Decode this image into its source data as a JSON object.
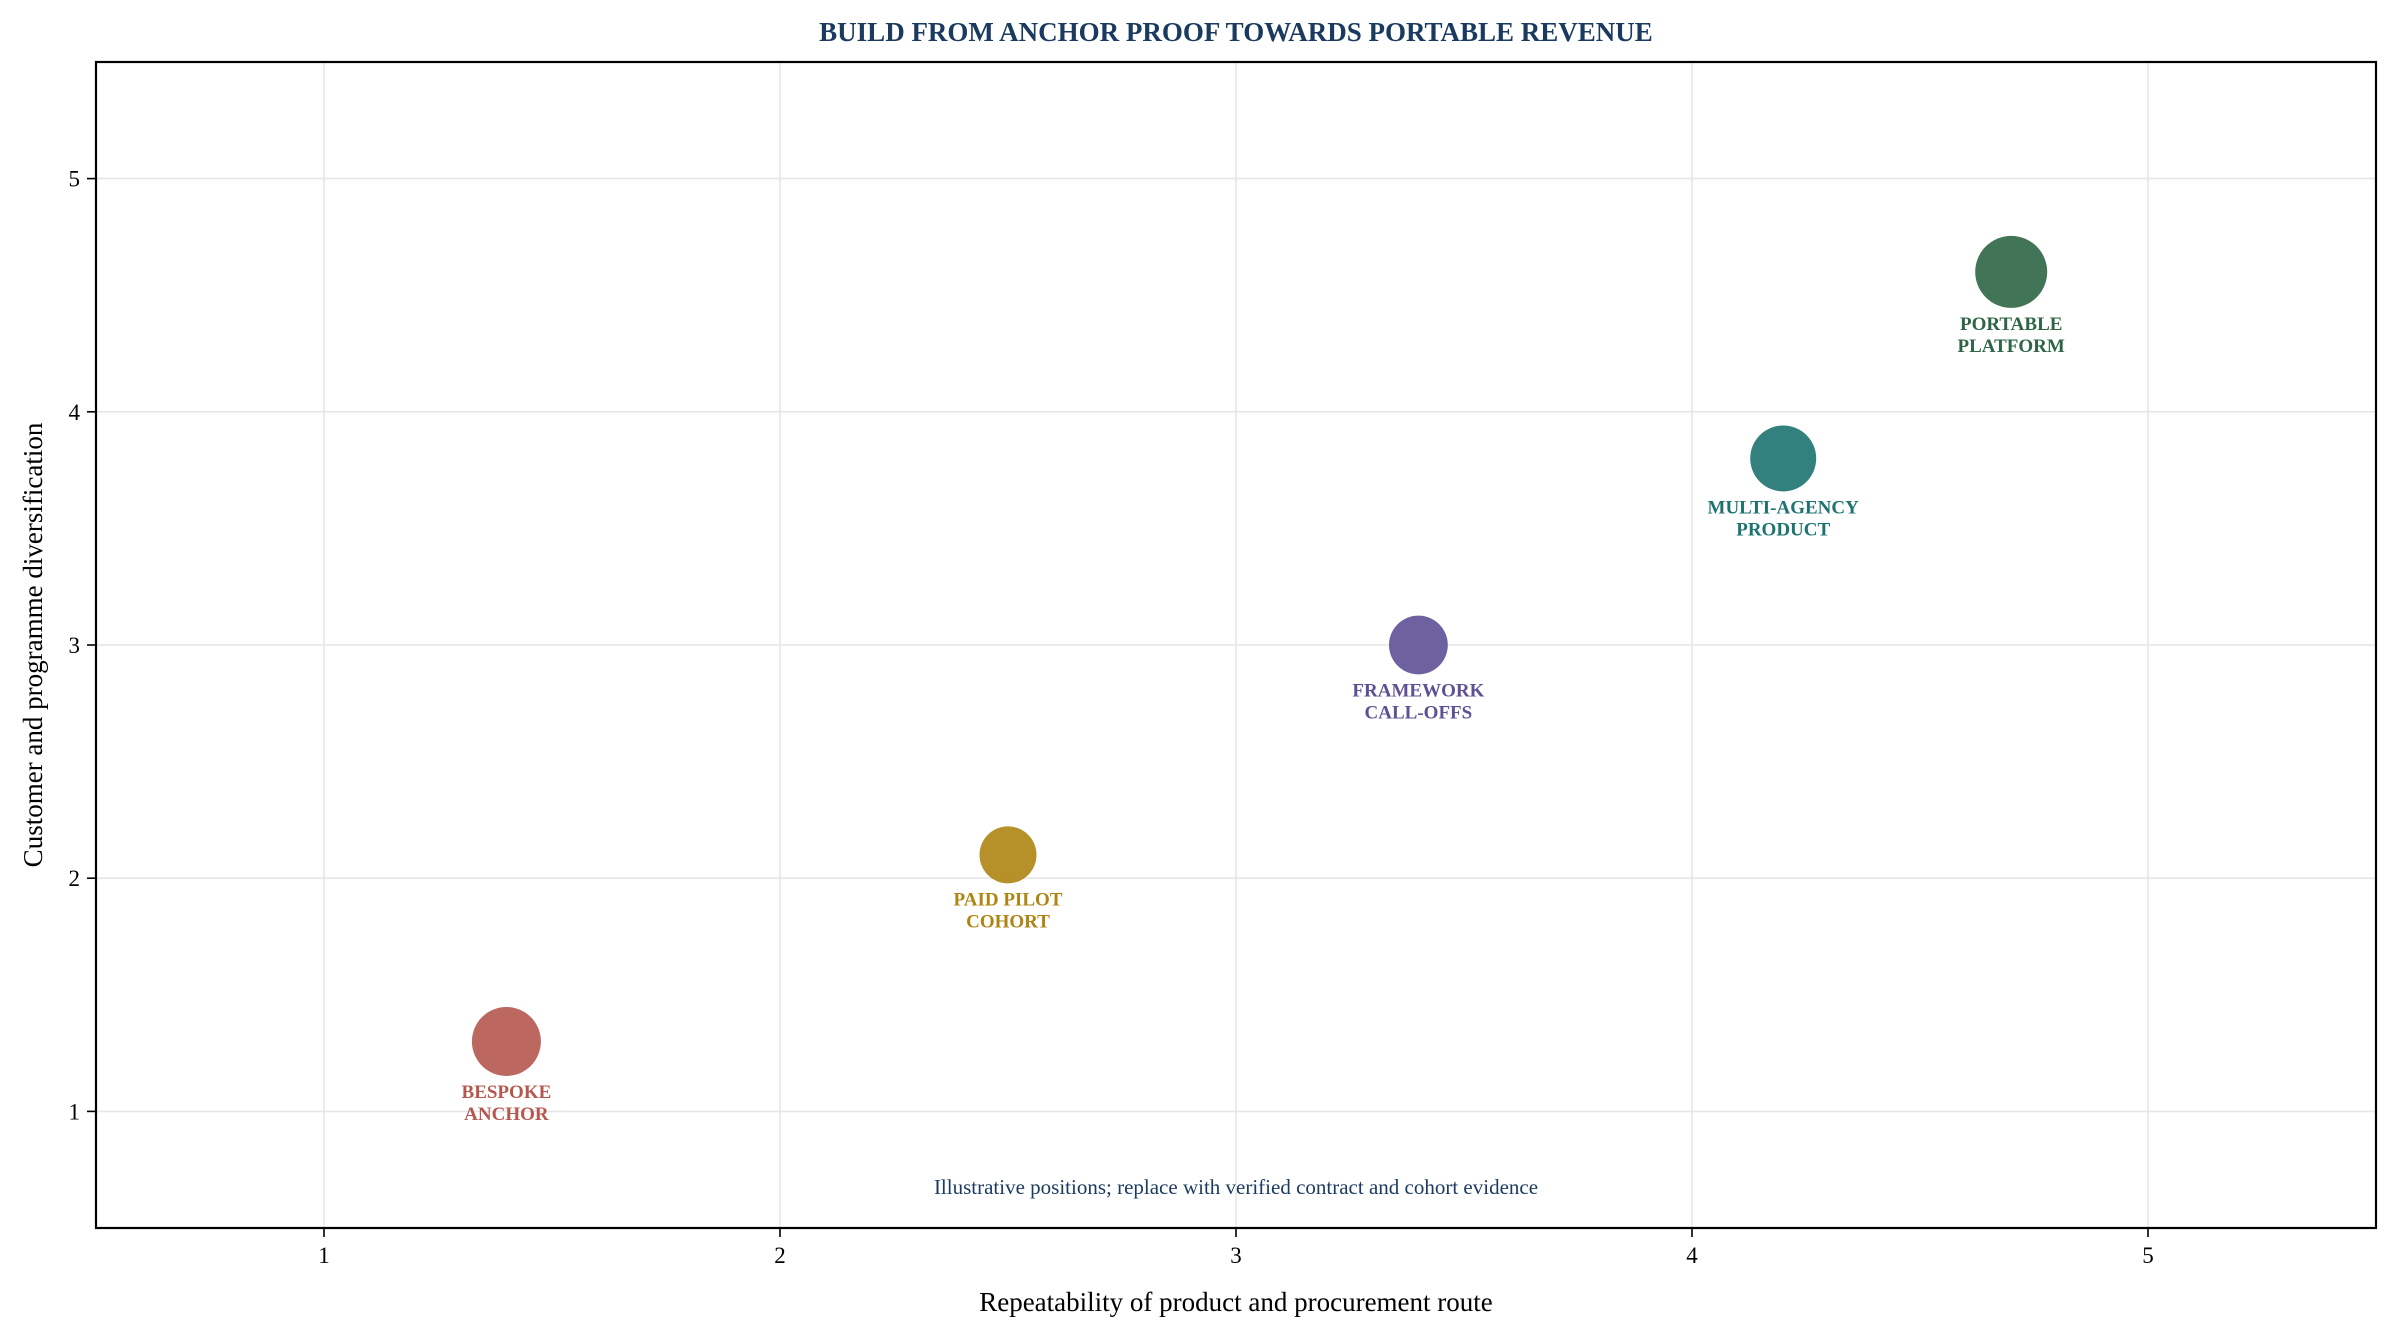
{
  "chart_data": {
    "type": "scatter",
    "title": "BUILD FROM ANCHOR PROOF TOWARDS PORTABLE REVENUE",
    "xlabel": "Repeatability of product and procurement route",
    "ylabel": "Customer and programme diversification",
    "xlim": [
      0.5,
      5.5
    ],
    "ylim": [
      0.5,
      5.5
    ],
    "xticks": [
      1,
      2,
      3,
      4,
      5
    ],
    "yticks": [
      1,
      2,
      3,
      4,
      5
    ],
    "grid": true,
    "annotation": "Illustrative positions; replace with verified contract and cohort evidence",
    "points": [
      {
        "label_lines": [
          "BESPOKE",
          "ANCHOR"
        ],
        "x": 1.4,
        "y": 1.3,
        "size": 1.15,
        "color": "#B5574F"
      },
      {
        "label_lines": [
          "PAID PILOT",
          "COHORT"
        ],
        "x": 2.5,
        "y": 2.1,
        "size": 0.95,
        "color": "#AE8412"
      },
      {
        "label_lines": [
          "FRAMEWORK",
          "CALL-OFFS"
        ],
        "x": 3.4,
        "y": 3.0,
        "size": 0.98,
        "color": "#5E5096"
      },
      {
        "label_lines": [
          "MULTI-AGENCY",
          "PRODUCT"
        ],
        "x": 4.2,
        "y": 3.8,
        "size": 1.1,
        "color": "#1D7370"
      },
      {
        "label_lines": [
          "PORTABLE",
          "PLATFORM"
        ],
        "x": 4.7,
        "y": 4.6,
        "size": 1.2,
        "color": "#2E6545"
      }
    ],
    "colors": {
      "title": "#1B3A5F",
      "annotation": "#1B3A5F",
      "axis": "#000000",
      "grid": "#E6E6E6"
    }
  }
}
